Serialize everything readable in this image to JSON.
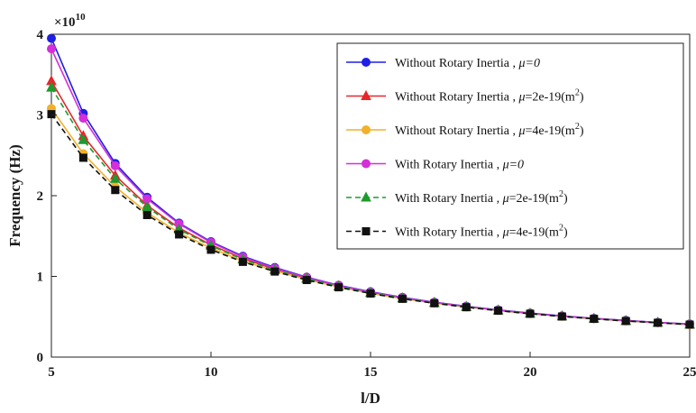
{
  "chart_data": {
    "type": "line",
    "xlabel": "l/D",
    "ylabel": "Frequency (Hz)",
    "y_multiplier": "×10",
    "y_multiplier_exp": "10",
    "xlim": [
      5,
      25
    ],
    "ylim": [
      0,
      4
    ],
    "xticks": [
      "5",
      "10",
      "15",
      "20",
      "25"
    ],
    "yticks": [
      "0",
      "1",
      "2",
      "3",
      "4"
    ],
    "grid": false,
    "legend_position": "top-right",
    "x": [
      5,
      6,
      7,
      8,
      9,
      10,
      11,
      12,
      13,
      14,
      15,
      16,
      17,
      18,
      19,
      20,
      21,
      22,
      23,
      24,
      25
    ],
    "series": [
      {
        "name": "Without Rotary Inertia , μ=0",
        "legend_main": "Without Rotary Inertia , ",
        "legend_mu": "μ=0",
        "legend_tail": "",
        "legend_sup": "",
        "legend_end": "",
        "color": "#1f1fe6",
        "marker": "circle",
        "dash": "solid",
        "values": [
          3.95,
          3.02,
          2.4,
          1.98,
          1.66,
          1.43,
          1.25,
          1.11,
          0.99,
          0.89,
          0.81,
          0.74,
          0.68,
          0.63,
          0.585,
          0.545,
          0.51,
          0.48,
          0.455,
          0.43,
          0.41
        ]
      },
      {
        "name": "Without Rotary Inertia , μ=2e-19(m2)",
        "legend_main": "Without Rotary Inertia , ",
        "legend_mu": "μ",
        "legend_tail": "=2e-19(m",
        "legend_sup": "2",
        "legend_end": ")",
        "color": "#e8262a",
        "marker": "triangle",
        "dash": "solid",
        "values": [
          3.42,
          2.74,
          2.25,
          1.88,
          1.6,
          1.39,
          1.22,
          1.09,
          0.98,
          0.88,
          0.8,
          0.73,
          0.675,
          0.625,
          0.58,
          0.54,
          0.507,
          0.477,
          0.45,
          0.428,
          0.405
        ]
      },
      {
        "name": "Without Rotary Inertia , μ=4e-19(m2)",
        "legend_main": "Without Rotary Inertia , ",
        "legend_mu": "μ",
        "legend_tail": "=4e-19(m",
        "legend_sup": "2",
        "legend_end": ")",
        "color": "#f2b12a",
        "marker": "circle",
        "dash": "solid",
        "values": [
          3.08,
          2.52,
          2.11,
          1.79,
          1.54,
          1.35,
          1.19,
          1.07,
          0.96,
          0.87,
          0.79,
          0.725,
          0.67,
          0.62,
          0.577,
          0.538,
          0.505,
          0.475,
          0.448,
          0.426,
          0.403
        ]
      },
      {
        "name": "With Rotary Inertia , μ=0",
        "legend_main": "With Rotary Inertia , ",
        "legend_mu": "μ=0",
        "legend_tail": "",
        "legend_sup": "",
        "legend_end": "",
        "color": "#d42fd8",
        "marker": "circle",
        "dash": "solid",
        "values": [
          3.82,
          2.96,
          2.37,
          1.96,
          1.65,
          1.42,
          1.24,
          1.1,
          0.985,
          0.885,
          0.805,
          0.735,
          0.677,
          0.627,
          0.582,
          0.543,
          0.508,
          0.478,
          0.452,
          0.428,
          0.407
        ]
      },
      {
        "name": "With Rotary Inertia , μ=2e-19(m2)",
        "legend_main": "With Rotary Inertia , ",
        "legend_mu": "μ",
        "legend_tail": "=2e-19(m",
        "legend_sup": "2",
        "legend_end": ")",
        "color": "#1e9a2e",
        "marker": "triangle",
        "dash": "dashed",
        "values": [
          3.34,
          2.69,
          2.21,
          1.86,
          1.58,
          1.38,
          1.21,
          1.08,
          0.97,
          0.875,
          0.795,
          0.728,
          0.672,
          0.622,
          0.578,
          0.539,
          0.505,
          0.476,
          0.449,
          0.427,
          0.404
        ]
      },
      {
        "name": "With Rotary Inertia , μ=4e-19(m2)",
        "legend_main": "With Rotary Inertia , ",
        "legend_mu": "μ",
        "legend_tail": "=4e-19(m",
        "legend_sup": "2",
        "legend_end": ")",
        "color": "#111111",
        "marker": "square",
        "dash": "dashed",
        "values": [
          3.01,
          2.47,
          2.07,
          1.76,
          1.52,
          1.33,
          1.18,
          1.06,
          0.955,
          0.865,
          0.788,
          0.722,
          0.667,
          0.618,
          0.575,
          0.537,
          0.503,
          0.474,
          0.447,
          0.425,
          0.402
        ]
      }
    ]
  }
}
